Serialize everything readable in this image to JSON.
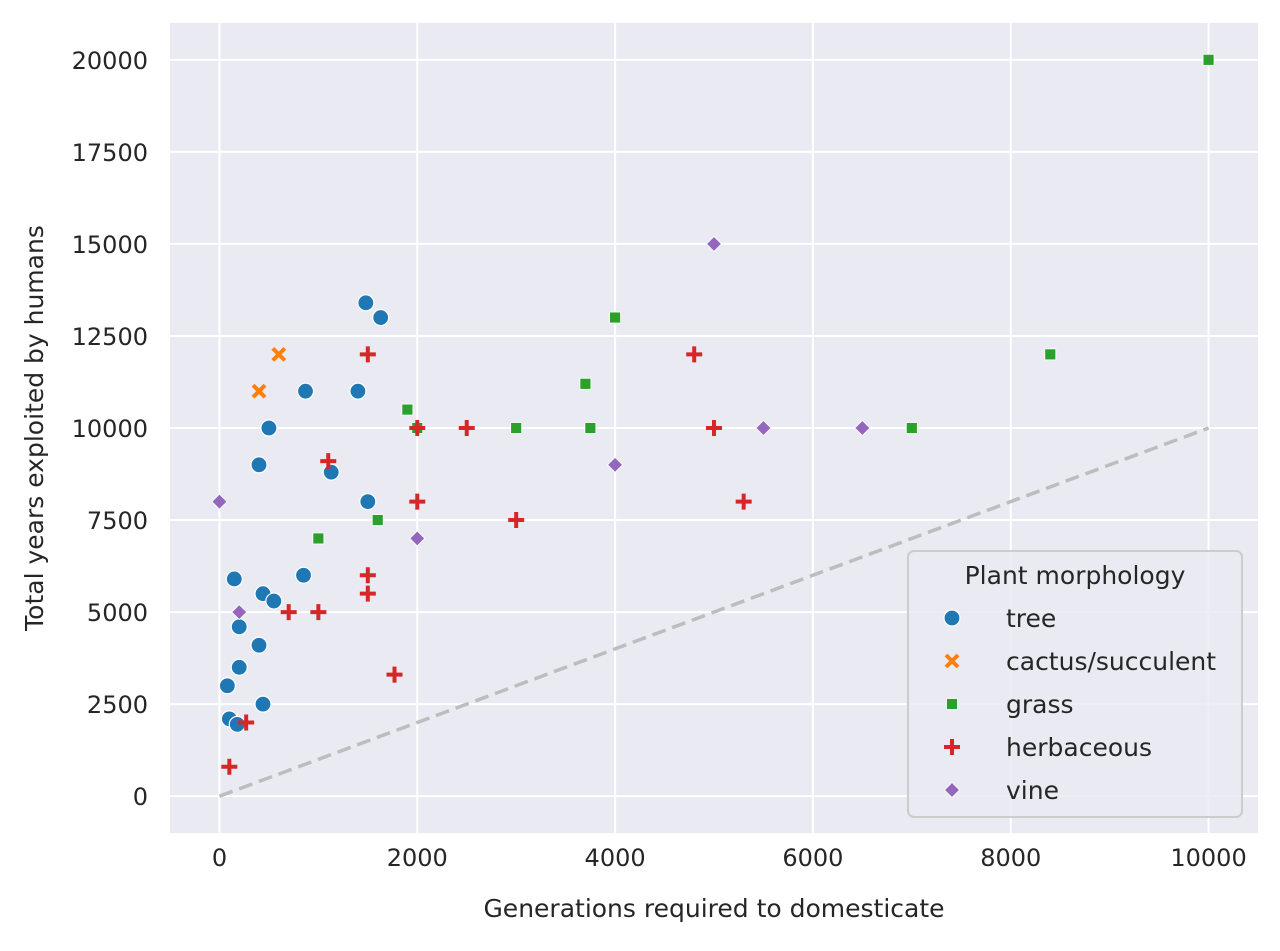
{
  "chart_data": {
    "type": "scatter",
    "xlabel": "Generations required to domesticate",
    "ylabel": "Total years exploited by humans",
    "xlim": [
      -500,
      10500
    ],
    "ylim": [
      -1000,
      21000
    ],
    "xticks": [
      0,
      2000,
      4000,
      6000,
      8000,
      10000
    ],
    "yticks": [
      0,
      2500,
      5000,
      7500,
      10000,
      12500,
      15000,
      17500,
      20000
    ],
    "grid": true,
    "legend": {
      "title": "Plant morphology",
      "placement": "lower-right"
    },
    "reference_line": {
      "style": "dashed",
      "color": "#bdbdbd",
      "x": [
        0,
        10000
      ],
      "y": [
        0,
        10000
      ]
    },
    "series": [
      {
        "name": "tree",
        "marker": "circle",
        "color": "#1f77b4",
        "points": [
          [
            1480,
            13400
          ],
          [
            1630,
            13000
          ],
          [
            870,
            11000
          ],
          [
            1400,
            11000
          ],
          [
            500,
            10000
          ],
          [
            400,
            9000
          ],
          [
            1130,
            8800
          ],
          [
            1500,
            8000
          ],
          [
            850,
            6000
          ],
          [
            150,
            5900
          ],
          [
            440,
            5500
          ],
          [
            550,
            5300
          ],
          [
            200,
            4600
          ],
          [
            400,
            4100
          ],
          [
            200,
            3500
          ],
          [
            80,
            3000
          ],
          [
            440,
            2500
          ],
          [
            100,
            2100
          ],
          [
            180,
            1950
          ]
        ]
      },
      {
        "name": "cactus/succulent",
        "marker": "x",
        "color": "#ff7f0e",
        "points": [
          [
            600,
            12000
          ],
          [
            400,
            11000
          ]
        ]
      },
      {
        "name": "grass",
        "marker": "square",
        "color": "#2ca02c",
        "points": [
          [
            10000,
            20000
          ],
          [
            4000,
            13000
          ],
          [
            8400,
            12000
          ],
          [
            3700,
            11200
          ],
          [
            1900,
            10500
          ],
          [
            3000,
            10000
          ],
          [
            3750,
            10000
          ],
          [
            7000,
            10000
          ],
          [
            1600,
            7500
          ],
          [
            1000,
            7000
          ],
          [
            2000,
            10000
          ]
        ]
      },
      {
        "name": "herbaceous",
        "marker": "plus",
        "color": "#d62728",
        "points": [
          [
            1500,
            12000
          ],
          [
            4800,
            12000
          ],
          [
            2000,
            10000
          ],
          [
            2500,
            10000
          ],
          [
            5000,
            10000
          ],
          [
            1100,
            9100
          ],
          [
            2000,
            8000
          ],
          [
            5300,
            8000
          ],
          [
            3000,
            7500
          ],
          [
            1500,
            6000
          ],
          [
            1500,
            5500
          ],
          [
            700,
            5000
          ],
          [
            1000,
            5000
          ],
          [
            1770,
            3300
          ],
          [
            270,
            2000
          ],
          [
            100,
            800
          ]
        ]
      },
      {
        "name": "vine",
        "marker": "diamond",
        "color": "#9467bd",
        "points": [
          [
            5000,
            15000
          ],
          [
            5500,
            10000
          ],
          [
            6500,
            10000
          ],
          [
            4000,
            9000
          ],
          [
            0,
            8000
          ],
          [
            2000,
            7000
          ],
          [
            200,
            5000
          ]
        ]
      }
    ]
  }
}
